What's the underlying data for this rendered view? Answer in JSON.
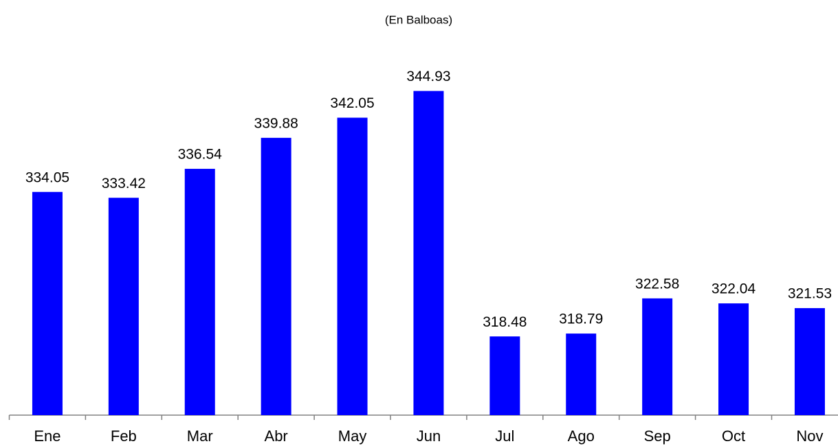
{
  "chart_data": {
    "type": "bar",
    "subtitle": "(En Balboas)",
    "categories": [
      "Ene",
      "Feb",
      "Mar",
      "Abr",
      "May",
      "Jun",
      "Jul",
      "Ago",
      "Sep",
      "Oct",
      "Nov"
    ],
    "values": [
      334.05,
      333.42,
      336.54,
      339.88,
      342.05,
      344.93,
      318.48,
      318.79,
      322.58,
      322.04,
      321.53
    ],
    "color": "#0000ff",
    "ylim": [
      310,
      350
    ]
  }
}
